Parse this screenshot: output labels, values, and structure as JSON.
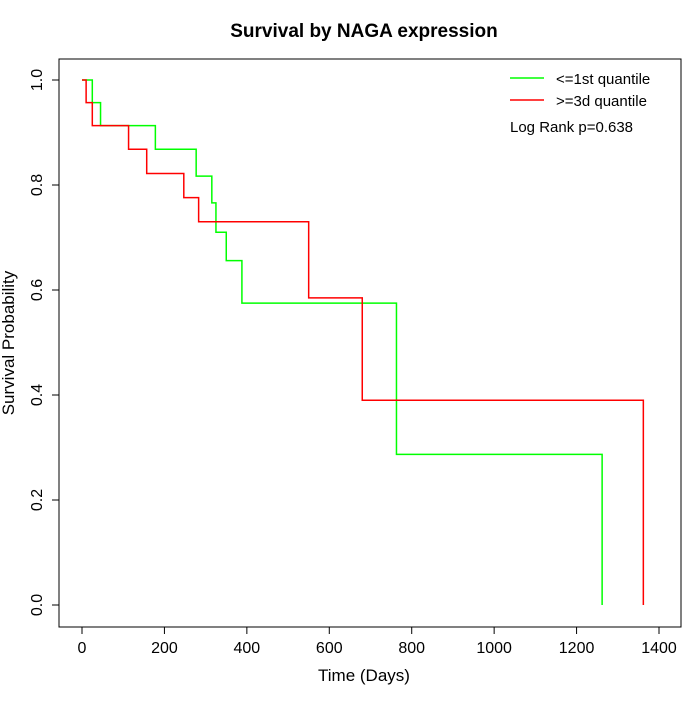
{
  "chart_data": {
    "type": "line",
    "subtype": "kaplan-meier step",
    "title": "Survival by NAGA expression",
    "xlabel": "Time (Days)",
    "ylabel": "Survival Probability",
    "xlim": [
      0,
      1400
    ],
    "ylim": [
      0,
      1
    ],
    "xticks": [
      "0",
      "200",
      "400",
      "600",
      "800",
      "1000",
      "1200",
      "1400"
    ],
    "yticks": [
      "0.0",
      "0.2",
      "0.4",
      "0.6",
      "0.8",
      "1.0"
    ],
    "grid": false,
    "legend_position": "top-right",
    "annotation": "Log Rank p=0.638",
    "series": [
      {
        "name": "<=1st quantile",
        "color": "#00ff00",
        "steps": [
          [
            0,
            1.0
          ],
          [
            25,
            0.957
          ],
          [
            45,
            0.913
          ],
          [
            178,
            0.868
          ],
          [
            277,
            0.817
          ],
          [
            315,
            0.766
          ],
          [
            325,
            0.71
          ],
          [
            350,
            0.656
          ],
          [
            388,
            0.575
          ],
          [
            763,
            0.287
          ],
          [
            1262,
            0.0
          ]
        ]
      },
      {
        "name": ">=3d quantile",
        "color": "#ff0000",
        "steps": [
          [
            0,
            1.0
          ],
          [
            10,
            0.957
          ],
          [
            25,
            0.913
          ],
          [
            113,
            0.868
          ],
          [
            157,
            0.822
          ],
          [
            247,
            0.776
          ],
          [
            283,
            0.73
          ],
          [
            550,
            0.585
          ],
          [
            680,
            0.39
          ],
          [
            1362,
            0.0
          ]
        ]
      }
    ]
  }
}
